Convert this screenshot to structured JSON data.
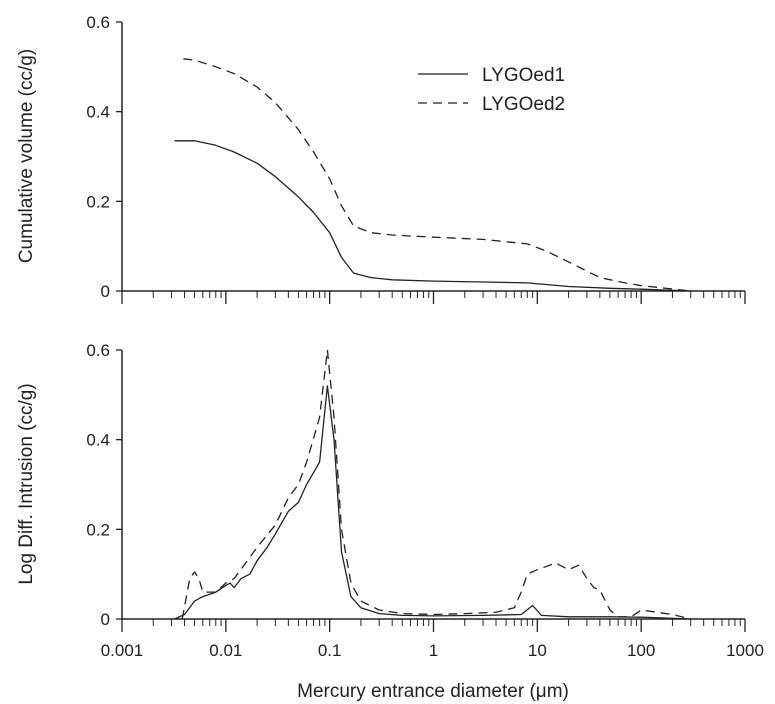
{
  "chart_data": [
    {
      "type": "line",
      "panel": "top",
      "ylabel": "Cumulative volume (cc/g)",
      "xlabel": "",
      "xscale": "log",
      "xlim": [
        0.001,
        1000
      ],
      "ylim": [
        0,
        0.6
      ],
      "yticks": [
        "0",
        "0.2",
        "0.4",
        "0.6"
      ],
      "legend": "top-right",
      "series": [
        {
          "name": "LYGOed1",
          "style": "solid",
          "x": [
            0.0032,
            0.005,
            0.008,
            0.012,
            0.02,
            0.03,
            0.05,
            0.07,
            0.1,
            0.13,
            0.17,
            0.25,
            0.4,
            1,
            3,
            8,
            20,
            50,
            100,
            300
          ],
          "y": [
            0.335,
            0.335,
            0.325,
            0.31,
            0.285,
            0.255,
            0.21,
            0.175,
            0.13,
            0.075,
            0.04,
            0.03,
            0.025,
            0.022,
            0.02,
            0.018,
            0.01,
            0.006,
            0.004,
            0.0
          ]
        },
        {
          "name": "LYGOed2",
          "style": "dashed",
          "x": [
            0.0039,
            0.005,
            0.008,
            0.012,
            0.02,
            0.03,
            0.05,
            0.07,
            0.1,
            0.13,
            0.17,
            0.25,
            0.4,
            1,
            3,
            8,
            12,
            20,
            40,
            70,
            100,
            300
          ],
          "y": [
            0.518,
            0.515,
            0.5,
            0.485,
            0.455,
            0.42,
            0.36,
            0.31,
            0.25,
            0.19,
            0.145,
            0.13,
            0.125,
            0.12,
            0.115,
            0.105,
            0.09,
            0.065,
            0.03,
            0.018,
            0.012,
            0.0
          ]
        }
      ]
    },
    {
      "type": "line",
      "panel": "bottom",
      "ylabel": "Log Diff. Intrusion (cc/g)",
      "xlabel": "Mercury entrance diameter (μm)",
      "xscale": "log",
      "xlim": [
        0.001,
        1000
      ],
      "ylim": [
        0,
        0.6
      ],
      "yticks": [
        "0",
        "0.2",
        "0.4",
        "0.6"
      ],
      "xticks": [
        "0.001",
        "0.01",
        "0.1",
        "1",
        "10",
        "100",
        "1000"
      ],
      "series": [
        {
          "name": "LYGOed1",
          "style": "solid",
          "x": [
            0.0032,
            0.004,
            0.005,
            0.006,
            0.008,
            0.01,
            0.011,
            0.012,
            0.014,
            0.017,
            0.02,
            0.025,
            0.03,
            0.04,
            0.05,
            0.06,
            0.08,
            0.095,
            0.11,
            0.13,
            0.16,
            0.2,
            0.3,
            0.5,
            1,
            3,
            7,
            9,
            11,
            20,
            50,
            100,
            300
          ],
          "y": [
            0.0,
            0.01,
            0.04,
            0.05,
            0.06,
            0.075,
            0.08,
            0.07,
            0.09,
            0.1,
            0.13,
            0.16,
            0.19,
            0.24,
            0.26,
            0.3,
            0.35,
            0.52,
            0.4,
            0.15,
            0.05,
            0.025,
            0.012,
            0.008,
            0.007,
            0.008,
            0.01,
            0.03,
            0.008,
            0.005,
            0.005,
            0.004,
            0.0
          ]
        },
        {
          "name": "LYGOed2",
          "style": "dashed",
          "x": [
            0.0038,
            0.0045,
            0.005,
            0.0055,
            0.006,
            0.008,
            0.01,
            0.012,
            0.015,
            0.02,
            0.03,
            0.04,
            0.05,
            0.06,
            0.08,
            0.095,
            0.11,
            0.13,
            0.16,
            0.2,
            0.3,
            0.5,
            1,
            2,
            4,
            6,
            7,
            8,
            10,
            15,
            20,
            25,
            30,
            35,
            40,
            50,
            60,
            80,
            100,
            200,
            300
          ],
          "y": [
            0.0,
            0.09,
            0.105,
            0.09,
            0.06,
            0.06,
            0.08,
            0.09,
            0.12,
            0.16,
            0.21,
            0.27,
            0.3,
            0.35,
            0.45,
            0.6,
            0.45,
            0.2,
            0.08,
            0.04,
            0.02,
            0.012,
            0.01,
            0.012,
            0.015,
            0.025,
            0.06,
            0.1,
            0.11,
            0.125,
            0.11,
            0.12,
            0.09,
            0.07,
            0.065,
            0.02,
            0.005,
            0.005,
            0.02,
            0.01,
            0.0
          ]
        }
      ]
    }
  ]
}
